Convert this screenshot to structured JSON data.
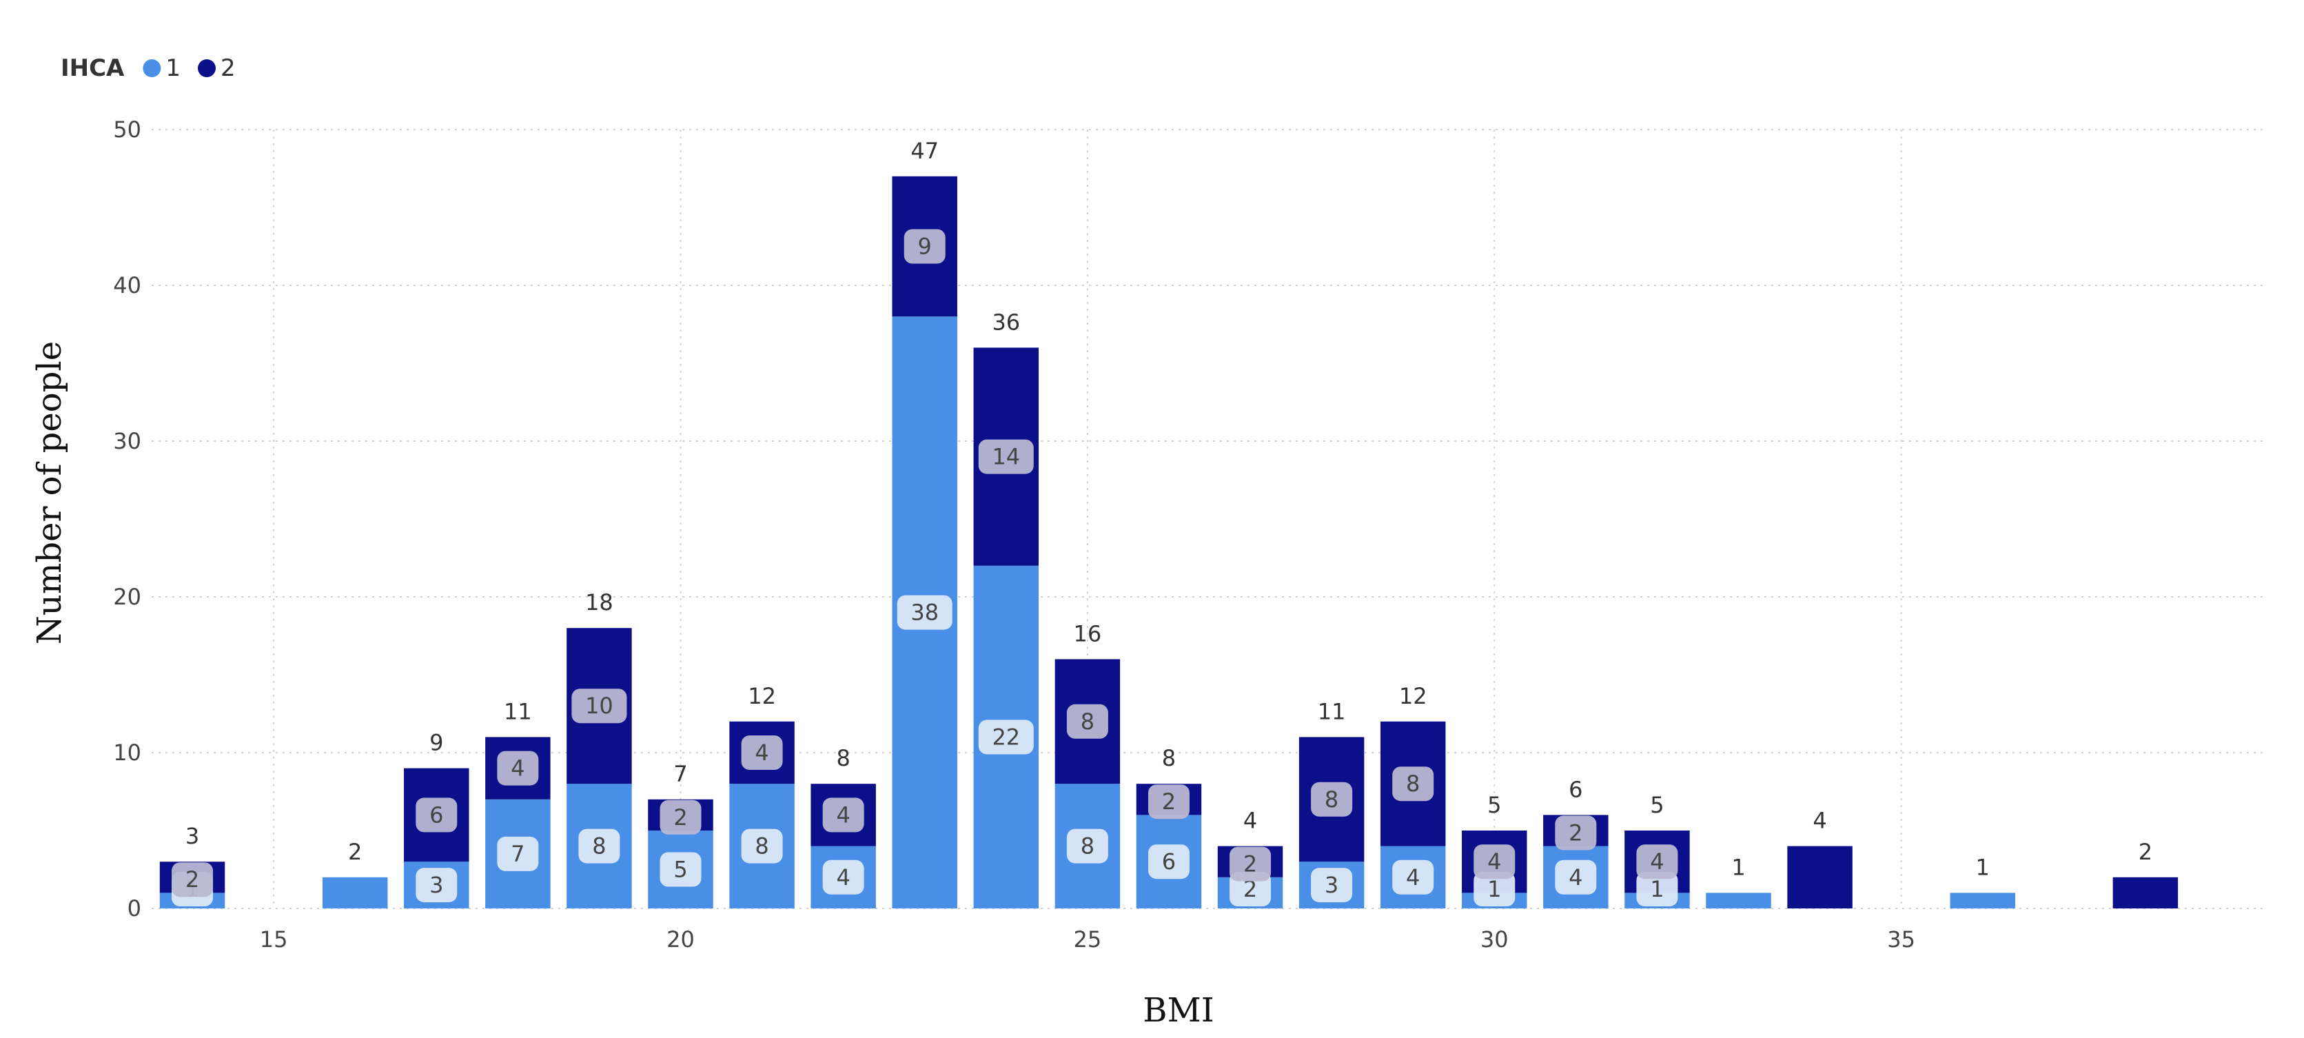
{
  "chart_data": {
    "type": "bar",
    "stacked": true,
    "title": "",
    "xlabel": "BMI",
    "ylabel": "Number of people",
    "ylim": [
      0,
      50
    ],
    "xlim": [
      13.5,
      39.5
    ],
    "y_ticks": [
      0,
      10,
      20,
      30,
      40,
      50
    ],
    "x_ticks": [
      15,
      20,
      25,
      30,
      35
    ],
    "grid": true,
    "legend": {
      "title": "IHCA",
      "placement": "top-left"
    },
    "x": [
      14,
      16,
      17,
      18,
      19,
      20,
      21,
      22,
      23,
      24,
      25,
      26,
      27,
      28,
      29,
      30,
      31,
      32,
      33,
      34,
      36,
      38
    ],
    "series": [
      {
        "name": "1",
        "color": "#4a8fe7",
        "values": [
          1,
          2,
          3,
          7,
          8,
          5,
          8,
          4,
          38,
          22,
          8,
          6,
          2,
          3,
          4,
          1,
          4,
          1,
          1,
          0,
          1,
          0
        ]
      },
      {
        "name": "2",
        "color": "#0c0f8a",
        "values": [
          2,
          0,
          6,
          4,
          10,
          2,
          4,
          4,
          9,
          14,
          8,
          2,
          2,
          8,
          8,
          4,
          2,
          4,
          0,
          4,
          0,
          2
        ]
      }
    ],
    "totals": [
      3,
      2,
      9,
      11,
      18,
      7,
      12,
      8,
      47,
      36,
      16,
      8,
      4,
      11,
      12,
      5,
      6,
      5,
      1,
      4,
      1,
      2
    ]
  }
}
